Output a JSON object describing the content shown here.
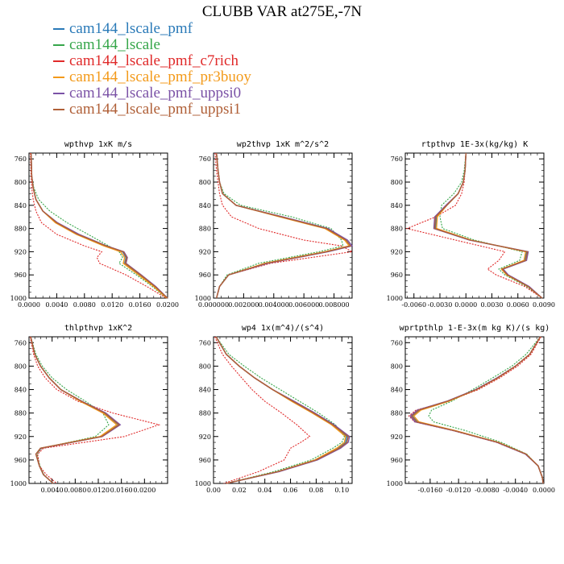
{
  "title": "CLUBB VAR at275E,-7N",
  "colors": {
    "cam144_lscale_pmf": "#2a7ab8",
    "cam144_lscale": "#36a64a",
    "cam144_lscale_pmf_c7rich": "#e02a2a",
    "cam144_lscale_pmf_pr3buoy": "#f39a1a",
    "cam144_lscale_pmf_uppsi0": "#7b52a6",
    "cam144_lscale_pmf_uppsi1": "#b06038"
  },
  "legend": [
    {
      "name": "cam144_lscale_pmf"
    },
    {
      "name": "cam144_lscale"
    },
    {
      "name": "cam144_lscale_pmf_c7rich"
    },
    {
      "name": "cam144_lscale_pmf_pr3buoy"
    },
    {
      "name": "cam144_lscale_pmf_uppsi0"
    },
    {
      "name": "cam144_lscale_pmf_uppsi1"
    }
  ],
  "chart_data": [
    {
      "type": "line",
      "title": "wpthvp  1xK m/s",
      "xlim": [
        0,
        0.02
      ],
      "ylim": [
        1000,
        750
      ],
      "xticks": [
        0,
        0.004,
        0.008,
        0.012,
        0.016,
        0.02
      ],
      "xticklabels": [
        "0.0000",
        "0.0040",
        "0.0080",
        "0.0120",
        "0.0160",
        "0.0200"
      ],
      "yticks": [
        760,
        800,
        840,
        880,
        920,
        960,
        1000
      ],
      "yticklabels": [
        "760",
        "800",
        "840",
        "880",
        "920",
        "960",
        "1000"
      ],
      "y": [
        750,
        790,
        810,
        830,
        850,
        870,
        890,
        910,
        920,
        930,
        940,
        960,
        980,
        1000
      ],
      "series": [
        {
          "name": "cam144_lscale_pmf",
          "values": [
            0.0003,
            0.0004,
            0.0006,
            0.001,
            0.002,
            0.004,
            0.007,
            0.011,
            0.0135,
            0.014,
            0.0138,
            0.016,
            0.0182,
            0.02
          ]
        },
        {
          "name": "cam144_lscale",
          "values": [
            0.0003,
            0.0004,
            0.0007,
            0.0014,
            0.003,
            0.0055,
            0.0085,
            0.0115,
            0.013,
            0.0135,
            0.013,
            0.0155,
            0.0178,
            0.0198
          ]
        },
        {
          "name": "cam144_lscale_pmf_c7rich",
          "values": [
            0.0002,
            0.0003,
            0.0004,
            0.0006,
            0.001,
            0.0018,
            0.004,
            0.008,
            0.0105,
            0.0098,
            0.0102,
            0.014,
            0.017,
            0.0198
          ]
        },
        {
          "name": "cam144_lscale_pmf_pr3buoy",
          "values": [
            0.0003,
            0.0004,
            0.0006,
            0.001,
            0.002,
            0.0038,
            0.0068,
            0.0108,
            0.0132,
            0.0138,
            0.0136,
            0.0158,
            0.018,
            0.0199
          ]
        },
        {
          "name": "cam144_lscale_pmf_uppsi0",
          "values": [
            0.0003,
            0.0004,
            0.0006,
            0.001,
            0.002,
            0.0041,
            0.0072,
            0.0112,
            0.0137,
            0.0142,
            0.014,
            0.0162,
            0.0183,
            0.02
          ]
        },
        {
          "name": "cam144_lscale_pmf_uppsi1",
          "values": [
            0.0003,
            0.0004,
            0.0006,
            0.001,
            0.002,
            0.004,
            0.007,
            0.0111,
            0.0136,
            0.0141,
            0.0139,
            0.0161,
            0.0182,
            0.02
          ]
        }
      ]
    },
    {
      "type": "line",
      "title": "wp2thvp  1xK m^2/s^2",
      "xlim": [
        0,
        0.0092
      ],
      "ylim": [
        1000,
        750
      ],
      "xticks": [
        0,
        0.002,
        0.004,
        0.006,
        0.008
      ],
      "xticklabels": [
        "0.000000",
        "0.002000",
        "0.004000",
        "0.006000",
        "0.008000"
      ],
      "yticks": [
        760,
        800,
        840,
        880,
        920,
        960,
        1000
      ],
      "yticklabels": [
        "760",
        "800",
        "840",
        "880",
        "920",
        "960",
        "1000"
      ],
      "y": [
        750,
        780,
        800,
        820,
        840,
        860,
        880,
        900,
        910,
        920,
        940,
        960,
        980,
        1000
      ],
      "series": [
        {
          "name": "cam144_lscale_pmf",
          "values": [
            0.0002,
            0.0003,
            0.0004,
            0.0006,
            0.0015,
            0.0045,
            0.0075,
            0.0088,
            0.0091,
            0.0075,
            0.0035,
            0.001,
            0.0004,
            0.0002
          ]
        },
        {
          "name": "cam144_lscale",
          "values": [
            0.0002,
            0.0003,
            0.0004,
            0.0007,
            0.0018,
            0.0052,
            0.0078,
            0.0085,
            0.0086,
            0.007,
            0.003,
            0.0009,
            0.0004,
            0.0002
          ]
        },
        {
          "name": "cam144_lscale_pmf_c7rich",
          "values": [
            0.0001,
            0.0002,
            0.0003,
            0.0004,
            0.0006,
            0.0012,
            0.003,
            0.006,
            0.0085,
            0.0092,
            0.0038,
            0.001,
            0.0004,
            0.0002
          ]
        },
        {
          "name": "cam144_lscale_pmf_pr3buoy",
          "values": [
            0.0002,
            0.0003,
            0.0004,
            0.0006,
            0.0015,
            0.0044,
            0.0074,
            0.0087,
            0.009,
            0.0074,
            0.0034,
            0.001,
            0.0004,
            0.0002
          ]
        },
        {
          "name": "cam144_lscale_pmf_uppsi0",
          "values": [
            0.0002,
            0.0003,
            0.0004,
            0.0006,
            0.0015,
            0.0046,
            0.0076,
            0.0089,
            0.0092,
            0.0076,
            0.0036,
            0.001,
            0.0004,
            0.0002
          ]
        },
        {
          "name": "cam144_lscale_pmf_uppsi1",
          "values": [
            0.0002,
            0.0003,
            0.0004,
            0.0006,
            0.0015,
            0.0045,
            0.0075,
            0.0088,
            0.0091,
            0.0075,
            0.0035,
            0.001,
            0.0004,
            0.0002
          ]
        }
      ]
    },
    {
      "type": "line",
      "title": "rtpthvp  1E-3x(kg/kg) K",
      "xlim": [
        -0.007,
        0.009
      ],
      "ylim": [
        1000,
        750
      ],
      "xticks": [
        -0.006,
        -0.003,
        0,
        0.003,
        0.006,
        0.009
      ],
      "xticklabels": [
        "-0.0060",
        "-0.0030",
        "0.0000",
        "0.0030",
        "0.0060",
        "0.0090"
      ],
      "yticks": [
        760,
        800,
        840,
        880,
        920,
        960,
        1000
      ],
      "yticklabels": [
        "760",
        "800",
        "840",
        "880",
        "920",
        "960",
        "1000"
      ],
      "y": [
        750,
        780,
        800,
        820,
        840,
        860,
        880,
        900,
        920,
        935,
        950,
        960,
        980,
        1000
      ],
      "series": [
        {
          "name": "cam144_lscale_pmf",
          "values": [
            0.0,
            -0.0001,
            -0.0003,
            -0.0009,
            -0.0022,
            -0.0034,
            -0.0035,
            0.0005,
            0.007,
            0.0068,
            0.0042,
            0.0048,
            0.0072,
            0.0088
          ]
        },
        {
          "name": "cam144_lscale",
          "values": [
            0.0,
            -0.0002,
            -0.0005,
            -0.0014,
            -0.0028,
            -0.003,
            -0.0027,
            0.001,
            0.0065,
            0.0062,
            0.0038,
            0.0045,
            0.007,
            0.0088
          ]
        },
        {
          "name": "cam144_lscale_pmf_c7rich",
          "values": [
            0.0,
            -0.0001,
            -0.0002,
            -0.0005,
            -0.0012,
            -0.0035,
            -0.0068,
            -0.0012,
            0.0045,
            0.0038,
            0.0025,
            0.0035,
            0.0068,
            0.0088
          ]
        },
        {
          "name": "cam144_lscale_pmf_pr3buoy",
          "values": [
            0.0,
            -0.0001,
            -0.0003,
            -0.0009,
            -0.0022,
            -0.0033,
            -0.0034,
            0.0006,
            0.0069,
            0.0067,
            0.0041,
            0.0047,
            0.0072,
            0.0088
          ]
        },
        {
          "name": "cam144_lscale_pmf_uppsi0",
          "values": [
            0.0,
            -0.0001,
            -0.0003,
            -0.0009,
            -0.0023,
            -0.0036,
            -0.0037,
            0.0004,
            0.0072,
            0.007,
            0.0043,
            0.0049,
            0.0073,
            0.0088
          ]
        },
        {
          "name": "cam144_lscale_pmf_uppsi1",
          "values": [
            0.0,
            -0.0001,
            -0.0003,
            -0.0009,
            -0.0022,
            -0.0035,
            -0.0036,
            0.0005,
            0.0071,
            0.0069,
            0.0042,
            0.0048,
            0.0072,
            0.0088
          ]
        }
      ]
    },
    {
      "type": "line",
      "title": "thlpthvp  1xK^2",
      "xlim": [
        0,
        0.024
      ],
      "ylim": [
        1000,
        750
      ],
      "xticks": [
        0.004,
        0.008,
        0.012,
        0.016,
        0.02
      ],
      "xticklabels": [
        "0.0040",
        "0.0080",
        "0.0120",
        "0.0160",
        "0.0200"
      ],
      "yticks": [
        760,
        800,
        840,
        880,
        920,
        960,
        1000
      ],
      "yticklabels": [
        "760",
        "800",
        "840",
        "880",
        "920",
        "960",
        "1000"
      ],
      "y": [
        750,
        780,
        800,
        820,
        840,
        860,
        880,
        900,
        920,
        940,
        950,
        970,
        985,
        1000
      ],
      "series": [
        {
          "name": "cam144_lscale_pmf",
          "values": [
            0.0003,
            0.001,
            0.002,
            0.0035,
            0.0055,
            0.009,
            0.013,
            0.0155,
            0.0125,
            0.002,
            0.0012,
            0.0018,
            0.0025,
            0.0042
          ]
        },
        {
          "name": "cam144_lscale",
          "values": [
            0.0003,
            0.0012,
            0.0023,
            0.004,
            0.0065,
            0.0098,
            0.0128,
            0.0138,
            0.0115,
            0.0022,
            0.0014,
            0.0019,
            0.0026,
            0.0042
          ]
        },
        {
          "name": "cam144_lscale_pmf_c7rich",
          "values": [
            0.0002,
            0.0008,
            0.0015,
            0.0028,
            0.0048,
            0.0085,
            0.0145,
            0.0225,
            0.0165,
            0.0025,
            0.0015,
            0.0018,
            0.003,
            0.0048
          ]
        },
        {
          "name": "cam144_lscale_pmf_pr3buoy",
          "values": [
            0.0003,
            0.001,
            0.002,
            0.0035,
            0.0055,
            0.0089,
            0.0128,
            0.0152,
            0.0123,
            0.002,
            0.0012,
            0.0018,
            0.0025,
            0.0042
          ]
        },
        {
          "name": "cam144_lscale_pmf_uppsi0",
          "values": [
            0.0003,
            0.001,
            0.002,
            0.0035,
            0.0055,
            0.0092,
            0.0133,
            0.0158,
            0.0127,
            0.0021,
            0.0012,
            0.0018,
            0.0025,
            0.0042
          ]
        },
        {
          "name": "cam144_lscale_pmf_uppsi1",
          "values": [
            0.0003,
            0.001,
            0.002,
            0.0035,
            0.0055,
            0.0091,
            0.0131,
            0.0156,
            0.0126,
            0.002,
            0.0012,
            0.0018,
            0.0025,
            0.0042
          ]
        }
      ]
    },
    {
      "type": "line",
      "title": "wp4  1x(m^4)/(s^4)",
      "xlim": [
        0,
        0.108
      ],
      "ylim": [
        1000,
        750
      ],
      "xticks": [
        0,
        0.02,
        0.04,
        0.06,
        0.08,
        0.1
      ],
      "xticklabels": [
        "0.00",
        "0.02",
        "0.04",
        "0.06",
        "0.08",
        "0.10"
      ],
      "yticks": [
        760,
        800,
        840,
        880,
        920,
        960,
        1000
      ],
      "yticklabels": [
        "760",
        "800",
        "840",
        "880",
        "920",
        "960",
        "1000"
      ],
      "y": [
        750,
        780,
        800,
        820,
        840,
        860,
        880,
        900,
        920,
        930,
        940,
        960,
        980,
        1000
      ],
      "series": [
        {
          "name": "cam144_lscale_pmf",
          "values": [
            0.002,
            0.01,
            0.02,
            0.032,
            0.046,
            0.062,
            0.078,
            0.093,
            0.104,
            0.103,
            0.097,
            0.08,
            0.05,
            0.01
          ]
        },
        {
          "name": "cam144_lscale",
          "values": [
            0.002,
            0.012,
            0.024,
            0.037,
            0.052,
            0.067,
            0.082,
            0.095,
            0.102,
            0.1,
            0.093,
            0.076,
            0.047,
            0.01
          ]
        },
        {
          "name": "cam144_lscale_pmf_c7rich",
          "values": [
            0.001,
            0.007,
            0.014,
            0.022,
            0.03,
            0.04,
            0.053,
            0.065,
            0.075,
            0.068,
            0.06,
            0.055,
            0.035,
            0.008
          ]
        },
        {
          "name": "cam144_lscale_pmf_pr3buoy",
          "values": [
            0.002,
            0.01,
            0.02,
            0.032,
            0.046,
            0.061,
            0.077,
            0.092,
            0.103,
            0.102,
            0.096,
            0.079,
            0.05,
            0.01
          ]
        },
        {
          "name": "cam144_lscale_pmf_uppsi0",
          "values": [
            0.002,
            0.01,
            0.02,
            0.032,
            0.046,
            0.063,
            0.079,
            0.094,
            0.106,
            0.105,
            0.099,
            0.081,
            0.051,
            0.01
          ]
        },
        {
          "name": "cam144_lscale_pmf_uppsi1",
          "values": [
            0.002,
            0.01,
            0.02,
            0.032,
            0.046,
            0.062,
            0.078,
            0.093,
            0.105,
            0.104,
            0.098,
            0.08,
            0.05,
            0.01
          ]
        }
      ]
    },
    {
      "type": "line",
      "title": "wprtpthlp  1-E-3x(m kg K)/(s kg)",
      "xlim": [
        -0.0195,
        0.0
      ],
      "ylim": [
        1000,
        750
      ],
      "xticks": [
        -0.016,
        -0.012,
        -0.008,
        -0.004,
        0
      ],
      "xticklabels": [
        "-0.0160",
        "-0.0120",
        "-0.0080",
        "-0.0040",
        "0.0000"
      ],
      "yticks": [
        760,
        800,
        840,
        880,
        920,
        960,
        1000
      ],
      "yticklabels": [
        "760",
        "800",
        "840",
        "880",
        "920",
        "960",
        "1000"
      ],
      "y": [
        750,
        780,
        800,
        820,
        840,
        860,
        875,
        885,
        895,
        910,
        930,
        950,
        970,
        990,
        1000
      ],
      "series": [
        {
          "name": "cam144_lscale_pmf",
          "values": [
            -0.0005,
            -0.002,
            -0.004,
            -0.0065,
            -0.0095,
            -0.0135,
            -0.0175,
            -0.0185,
            -0.0178,
            -0.0125,
            -0.0065,
            -0.0025,
            -0.0008,
            -0.0002,
            -0.0001
          ]
        },
        {
          "name": "cam144_lscale",
          "values": [
            -0.0005,
            -0.0025,
            -0.0045,
            -0.0072,
            -0.01,
            -0.013,
            -0.0158,
            -0.0162,
            -0.0155,
            -0.011,
            -0.006,
            -0.0024,
            -0.0008,
            -0.0002,
            -0.0001
          ]
        },
        {
          "name": "cam144_lscale_pmf_c7rich",
          "values": [
            -0.0004,
            -0.0018,
            -0.0037,
            -0.0062,
            -0.0092,
            -0.0135,
            -0.018,
            -0.019,
            -0.0182,
            -0.0128,
            -0.0067,
            -0.0026,
            -0.0008,
            -0.0002,
            -0.0001
          ]
        },
        {
          "name": "cam144_lscale_pmf_pr3buoy",
          "values": [
            -0.0005,
            -0.002,
            -0.004,
            -0.0065,
            -0.0095,
            -0.0134,
            -0.0173,
            -0.0183,
            -0.0176,
            -0.0124,
            -0.0064,
            -0.0025,
            -0.0008,
            -0.0002,
            -0.0001
          ]
        },
        {
          "name": "cam144_lscale_pmf_uppsi0",
          "values": [
            -0.0005,
            -0.002,
            -0.004,
            -0.0066,
            -0.0096,
            -0.0137,
            -0.0178,
            -0.0188,
            -0.0181,
            -0.0127,
            -0.0066,
            -0.0026,
            -0.0008,
            -0.0002,
            -0.0001
          ]
        },
        {
          "name": "cam144_lscale_pmf_uppsi1",
          "values": [
            -0.0005,
            -0.002,
            -0.004,
            -0.0065,
            -0.0095,
            -0.0136,
            -0.0176,
            -0.0186,
            -0.0179,
            -0.0126,
            -0.0065,
            -0.0025,
            -0.0008,
            -0.0002,
            -0.0001
          ]
        }
      ]
    }
  ]
}
